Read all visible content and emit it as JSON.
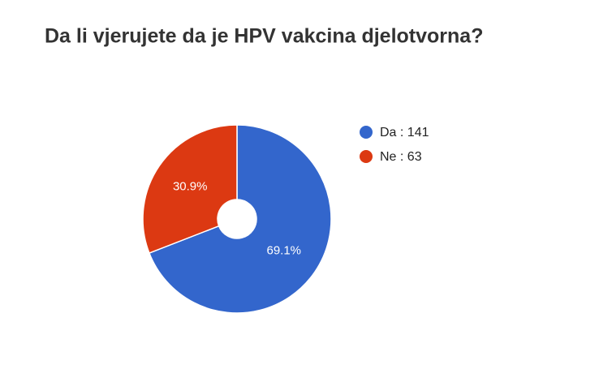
{
  "chart_data": {
    "type": "pie",
    "title": "Da li vjerujete da je HPV vakcina djelotvorna?",
    "categories": [
      "Da : 141",
      "Ne : 63"
    ],
    "values": [
      69.1,
      30.9
    ],
    "value_labels": [
      "69.1%",
      "30.9%"
    ],
    "colors": [
      "#3366cc",
      "#dc3912"
    ],
    "legend": "right"
  }
}
